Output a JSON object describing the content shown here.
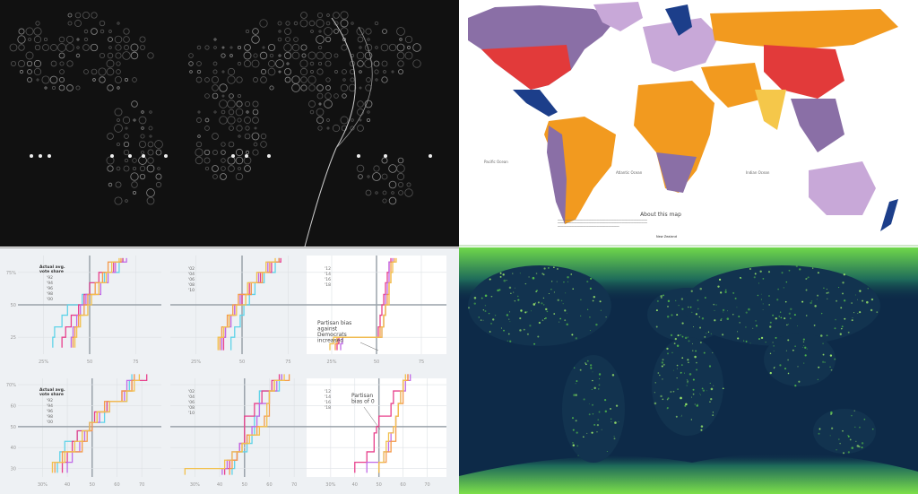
{
  "panels": {
    "dot_map": {
      "title": "",
      "background": "#111111"
    },
    "political_map": {
      "about_title": "About this map",
      "oceans": [
        "Pacific Ocean",
        "Atlantic Ocean",
        "Indian Ocean"
      ],
      "label_new_zealand": "New Zealand",
      "colors": {
        "orange": "#f29a1f",
        "red": "#e23a3a",
        "purple": "#8a6fa6",
        "lilac": "#c8a8d8",
        "navy": "#1c3e8a",
        "yellow": "#f5c74a"
      }
    },
    "night_lights_map": {
      "ocean": "#0d2a48",
      "light": "#7de04a"
    }
  },
  "chart_data": [
    {
      "type": "line",
      "legend_title": "Actual avg. vote share",
      "years": [
        "'92",
        "'94",
        "'96",
        "'98",
        "'00"
      ],
      "xticks": [
        "25%",
        "50",
        "75"
      ],
      "xvals": [
        25,
        50,
        75
      ],
      "yticks": [
        "75%",
        "50",
        "25"
      ],
      "yvals": [
        75,
        50,
        25
      ],
      "xlim": [
        15,
        85
      ],
      "ylim": [
        12,
        88
      ],
      "ylevels": [
        17,
        25,
        33,
        42,
        50,
        58,
        67,
        75,
        83
      ],
      "series": [
        {
          "color": "#5fd3e8",
          "x": [
            30,
            31,
            35,
            38,
            46,
            50,
            58,
            66,
            68
          ]
        },
        {
          "color": "#e8408c",
          "x": [
            35,
            37,
            40,
            44,
            47,
            50,
            55,
            63,
            68
          ]
        },
        {
          "color": "#c06ae8",
          "x": [
            40,
            41,
            43,
            45,
            48,
            56,
            60,
            64,
            70
          ]
        },
        {
          "color": "#f59a4a",
          "x": [
            41,
            42,
            44,
            47,
            49,
            53,
            57,
            60,
            67
          ]
        },
        {
          "color": "#f2c14e",
          "x": [
            42,
            43,
            45,
            49,
            51,
            55,
            59,
            62,
            66
          ]
        }
      ]
    },
    {
      "type": "line",
      "years": [
        "'02",
        "'04",
        "'06",
        "'08",
        "'10"
      ],
      "xticks": [
        "25%",
        "50",
        "75"
      ],
      "xvals": [
        25,
        50,
        75
      ],
      "yticks": [],
      "yvals": [],
      "xlim": [
        15,
        85
      ],
      "ylim": [
        12,
        88
      ],
      "ylevels": [
        15,
        25,
        33,
        42,
        50,
        58,
        67,
        75,
        83
      ],
      "series": [
        {
          "color": "#5fd3e8",
          "x": [
            44,
            46,
            49,
            51,
            54,
            57,
            62,
            68,
            70
          ]
        },
        {
          "color": "#e8408c",
          "x": [
            40,
            41,
            43,
            46,
            50,
            54,
            60,
            66,
            71
          ]
        },
        {
          "color": "#c06ae8",
          "x": [
            39,
            41,
            44,
            46,
            49,
            55,
            59,
            64,
            70
          ]
        },
        {
          "color": "#f59a4a",
          "x": [
            38,
            39,
            42,
            45,
            48,
            55,
            61,
            65,
            70
          ]
        },
        {
          "color": "#f2c14e",
          "x": [
            37,
            40,
            43,
            47,
            52,
            53,
            58,
            63,
            68
          ]
        }
      ]
    },
    {
      "type": "line",
      "years": [
        "'12",
        "'14",
        "'16",
        "'18"
      ],
      "annotation": "Partisan bias against Democrats increased",
      "xticks": [
        "25%",
        "50",
        "75"
      ],
      "xvals": [
        25,
        50,
        75
      ],
      "yticks": [],
      "yvals": [],
      "xlim": [
        15,
        85
      ],
      "ylim": [
        12,
        88
      ],
      "ylevels": [
        15,
        20,
        25,
        33,
        42,
        50,
        58,
        67,
        75,
        83
      ],
      "series": [
        {
          "color": "#e8408c",
          "x": [
            28,
            29,
            51,
            52,
            53,
            54,
            55,
            56,
            57,
            58
          ]
        },
        {
          "color": "#c06ae8",
          "x": [
            30,
            31,
            53,
            54,
            55,
            55,
            56,
            57,
            57,
            59
          ]
        },
        {
          "color": "#f59a4a",
          "x": [
            27,
            28,
            52,
            54,
            55,
            56,
            57,
            58,
            58,
            60
          ]
        },
        {
          "color": "#f2c14e",
          "x": [
            24,
            26,
            53,
            54,
            55,
            57,
            57,
            58,
            59,
            61
          ]
        }
      ]
    },
    {
      "type": "line",
      "legend_title": "Actual avg. vote share",
      "years": [
        "'92",
        "'94",
        "'96",
        "'98",
        "'00"
      ],
      "xticks": [
        "30%",
        "40",
        "50",
        "60",
        "70"
      ],
      "xvals": [
        30,
        40,
        50,
        60,
        70
      ],
      "yticks": [
        "70%",
        "60",
        "50",
        "40",
        "30"
      ],
      "yvals": [
        70,
        60,
        50,
        40,
        30
      ],
      "xlim": [
        23,
        75
      ],
      "ylim": [
        26,
        73
      ],
      "ylevels": [
        28,
        33,
        38,
        43,
        48,
        52,
        57,
        62,
        67,
        72
      ],
      "series": [
        {
          "color": "#5fd3e8",
          "x": [
            36,
            37,
            39,
            44,
            49,
            55,
            56,
            64,
            65,
            66
          ]
        },
        {
          "color": "#e8408c",
          "x": [
            38,
            40,
            42,
            44,
            49,
            51,
            56,
            62,
            66,
            72
          ]
        },
        {
          "color": "#c06ae8",
          "x": [
            40,
            42,
            45,
            47,
            50,
            53,
            57,
            63,
            64,
            67
          ]
        },
        {
          "color": "#f59a4a",
          "x": [
            35,
            38,
            46,
            48,
            50,
            52,
            55,
            62,
            66,
            67
          ]
        },
        {
          "color": "#f2c14e",
          "x": [
            34,
            39,
            43,
            46,
            49,
            52,
            57,
            64,
            67,
            69
          ]
        }
      ]
    },
    {
      "type": "line",
      "years": [
        "'02",
        "'04",
        "'06",
        "'08",
        "'10"
      ],
      "xticks": [
        "30%",
        "40",
        "50",
        "60",
        "70"
      ],
      "xvals": [
        30,
        40,
        50,
        60,
        70
      ],
      "yticks": [],
      "yvals": [],
      "xlim": [
        23,
        75
      ],
      "ylim": [
        26,
        73
      ],
      "ylevels": [
        27,
        30,
        34,
        38,
        42,
        46,
        50,
        55,
        61,
        67,
        72
      ],
      "series": [
        {
          "color": "#5fd3e8",
          "x": [
            45,
            46,
            47,
            51,
            53,
            54,
            54,
            56,
            56,
            64,
            65
          ]
        },
        {
          "color": "#e8408c",
          "x": [
            42,
            44,
            47,
            48,
            50,
            50,
            50,
            54,
            57,
            61,
            64
          ]
        },
        {
          "color": "#c06ae8",
          "x": [
            41,
            43,
            45,
            48,
            51,
            53,
            55,
            56,
            60,
            63,
            65
          ]
        },
        {
          "color": "#f59a4a",
          "x": [
            44,
            45,
            47,
            49,
            51,
            55,
            58,
            60,
            60,
            62,
            68
          ]
        },
        {
          "color": "#f2c14e",
          "x": [
            26,
            42,
            45,
            49,
            52,
            56,
            59,
            59,
            60,
            62,
            66
          ]
        }
      ]
    },
    {
      "type": "line",
      "years": [
        "'12",
        "'14",
        "'16",
        "'18"
      ],
      "annotation": "Partisan bias of 0",
      "xticks": [
        "30%",
        "40",
        "50",
        "60",
        "70"
      ],
      "xvals": [
        30,
        40,
        50,
        60,
        70
      ],
      "yticks": [],
      "yvals": [],
      "xlim": [
        23,
        75
      ],
      "ylim": [
        26,
        73
      ],
      "ylevels": [
        28,
        33,
        38,
        43,
        47,
        50,
        55,
        61,
        67,
        72
      ],
      "series": [
        {
          "color": "#e8408c",
          "x": [
            40,
            45,
            48,
            48,
            49,
            50,
            55,
            56,
            60,
            62
          ]
        },
        {
          "color": "#c06ae8",
          "x": [
            45,
            52,
            54,
            55,
            56,
            57,
            58,
            59,
            61,
            63
          ]
        },
        {
          "color": "#f59a4a",
          "x": [
            50,
            53,
            55,
            57,
            57,
            57,
            58,
            60,
            60,
            62
          ]
        },
        {
          "color": "#f2c14e",
          "x": [
            50,
            52,
            53,
            54,
            56,
            57,
            58,
            59,
            60,
            61
          ]
        }
      ]
    }
  ]
}
